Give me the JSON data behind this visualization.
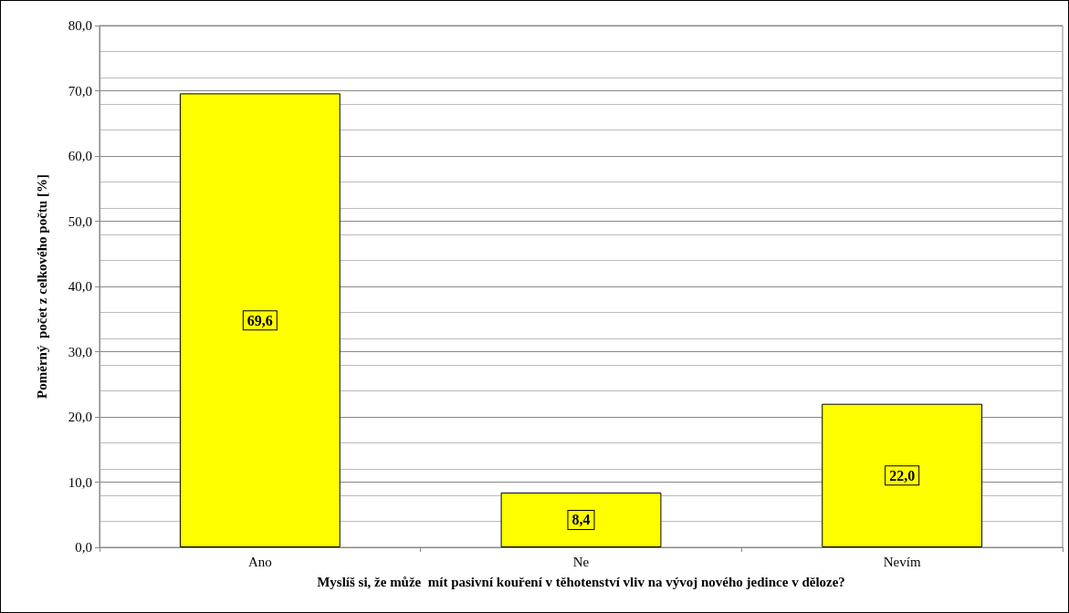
{
  "chart_data": {
    "type": "bar",
    "xlabel": "Myslíš si, že může  mít pasivní kouření v těhotenství vliv na vývoj nového jedince v děloze?",
    "ylabel": "Poměrný  počet z celkového počtu [%]",
    "categories": [
      "Ano",
      "Ne",
      "Nevím"
    ],
    "values": [
      69.6,
      8.4,
      22.0
    ],
    "value_labels": [
      "69,6",
      "8,4",
      "22,0"
    ],
    "color": "#ffff00",
    "ylim": [
      0,
      80
    ],
    "yticks": [
      {
        "value": 0,
        "label": "0,0"
      },
      {
        "value": 10,
        "label": "10,0"
      },
      {
        "value": 20,
        "label": "20,0"
      },
      {
        "value": 30,
        "label": "30,0"
      },
      {
        "value": 40,
        "label": "40,0"
      },
      {
        "value": 50,
        "label": "50,0"
      },
      {
        "value": 60,
        "label": "60,0"
      },
      {
        "value": 70,
        "label": "70,0"
      },
      {
        "value": 80,
        "label": "80,0"
      }
    ],
    "grid": true
  }
}
